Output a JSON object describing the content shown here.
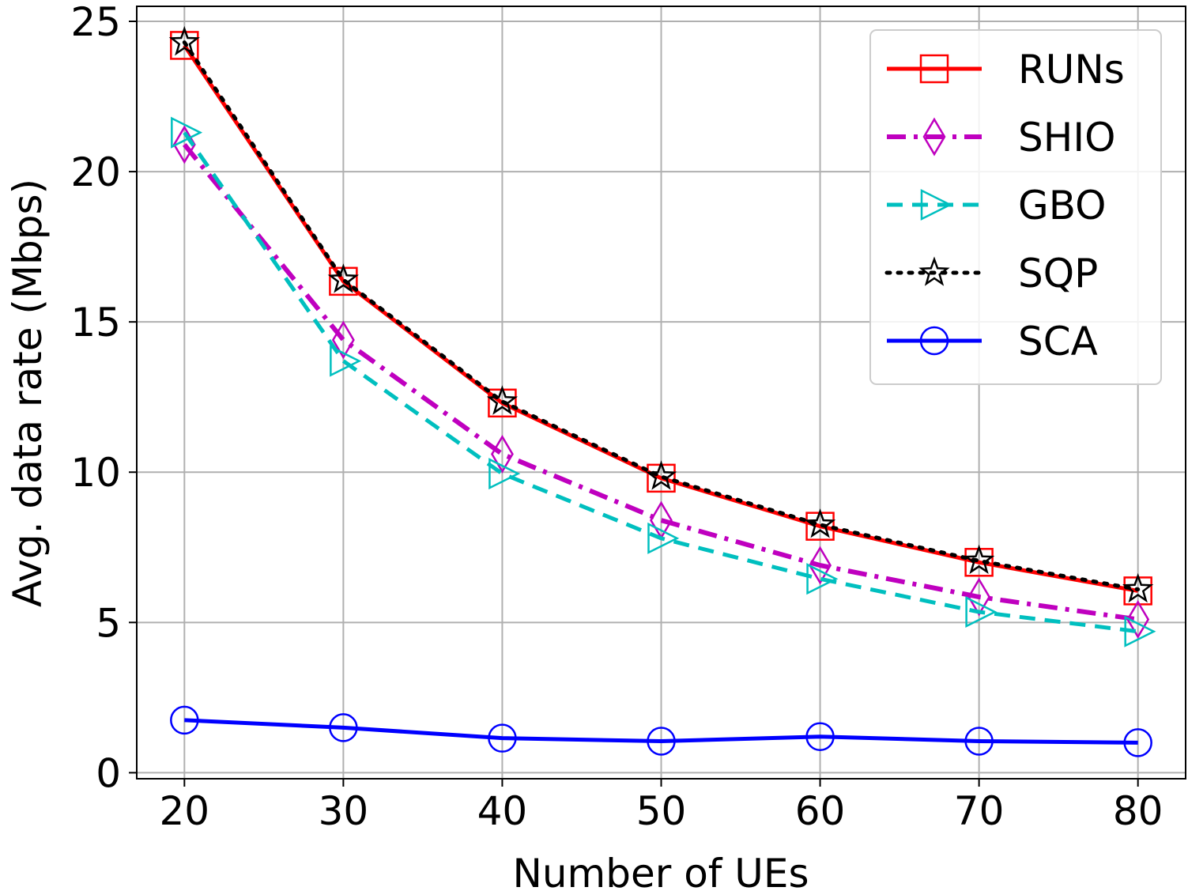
{
  "chart_data": {
    "type": "line",
    "title": "",
    "xlabel": "Number of UEs",
    "ylabel": "Avg. data rate (Mbps)",
    "x": [
      20,
      30,
      40,
      50,
      60,
      70,
      80
    ],
    "xlim": [
      17,
      83
    ],
    "ylim": [
      -0.2,
      25.5
    ],
    "xticks": [
      20,
      30,
      40,
      50,
      60,
      70,
      80
    ],
    "yticks": [
      0,
      5,
      10,
      15,
      20,
      25
    ],
    "grid": true,
    "legend_position": "top-right",
    "series": [
      {
        "name": "RUNs",
        "values": [
          24.2,
          16.35,
          12.3,
          9.8,
          8.2,
          7.0,
          6.05
        ],
        "color": "#ff0000",
        "line_style": "solid",
        "marker": "square"
      },
      {
        "name": "SHIO",
        "values": [
          20.9,
          14.4,
          10.6,
          8.4,
          6.9,
          5.85,
          5.1
        ],
        "color": "#bf00bf",
        "line_style": "dash-dot",
        "marker": "diamond"
      },
      {
        "name": "GBO",
        "values": [
          21.3,
          13.7,
          9.95,
          7.8,
          6.45,
          5.35,
          4.7
        ],
        "color": "#00bfbf",
        "line_style": "dashed",
        "marker": "triangle-right"
      },
      {
        "name": "SQP",
        "values": [
          24.3,
          16.4,
          12.35,
          9.85,
          8.25,
          7.05,
          6.1
        ],
        "color": "#000000",
        "line_style": "dotted",
        "marker": "star"
      },
      {
        "name": "SCA",
        "values": [
          1.75,
          1.5,
          1.15,
          1.05,
          1.2,
          1.05,
          1.0
        ],
        "color": "#0000ff",
        "line_style": "solid",
        "marker": "circle"
      }
    ]
  }
}
